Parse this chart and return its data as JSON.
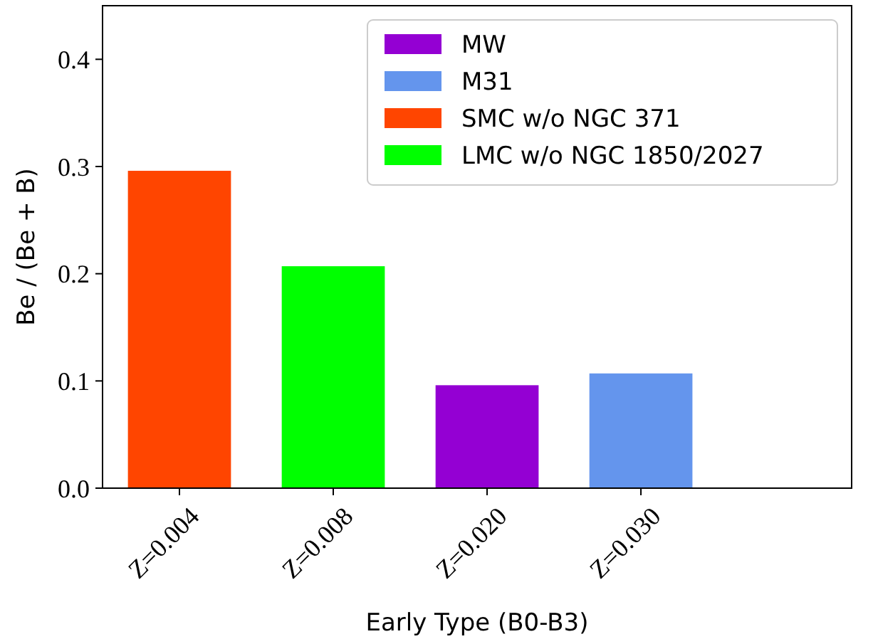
{
  "chart_data": {
    "type": "bar",
    "xlabel": "Early Type (B0-B3)",
    "ylabel": "Be / (Be + B)",
    "categories": [
      "Z=0.004",
      "Z=0.008",
      "Z=0.020",
      "Z=0.030"
    ],
    "series": [
      {
        "name": "MW",
        "color": "#9400d3",
        "values": [
          null,
          null,
          0.096,
          null
        ]
      },
      {
        "name": "M31",
        "color": "#6495ed",
        "values": [
          null,
          null,
          null,
          0.107
        ]
      },
      {
        "name": "SMC w/o NGC 371",
        "color": "#ff4500",
        "values": [
          0.296,
          null,
          null,
          null
        ]
      },
      {
        "name": "LMC w/o NGC 1850/2027",
        "color": "#00ff00",
        "values": [
          null,
          0.207,
          null,
          null
        ]
      }
    ],
    "ylim": [
      0,
      0.45
    ],
    "yticks": [
      {
        "value": 0,
        "label": "0.0"
      },
      0.1,
      0.2,
      0.3,
      0.4
    ],
    "legend": "top right"
  }
}
